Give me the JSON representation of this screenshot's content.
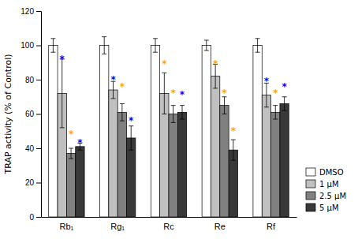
{
  "chart_data": {
    "type": "bar",
    "categories": [
      "Rb₁",
      "Rg₁",
      "Rc",
      "Re",
      "Rf"
    ],
    "series": [
      {
        "name": "DMSO",
        "color": "#ffffff",
        "values": [
          100,
          100,
          100,
          100,
          100
        ],
        "errors": [
          4,
          5,
          4,
          3,
          4
        ]
      },
      {
        "name": "1 μM",
        "color": "#c0c0c0",
        "values": [
          72,
          74,
          72,
          82,
          71
        ],
        "errors": [
          20,
          5,
          12,
          7,
          7
        ]
      },
      {
        "name": "2.5 μM",
        "color": "#808080",
        "values": [
          37,
          61,
          60,
          65,
          61
        ],
        "errors": [
          3,
          5,
          5,
          5,
          4
        ]
      },
      {
        "name": "5 μM",
        "color": "#383838",
        "values": [
          41,
          46,
          61,
          39,
          66
        ],
        "errors": [
          2,
          7,
          4,
          6,
          4
        ]
      }
    ],
    "y_label": "TRAP activity (% of Control)",
    "ylim": [
      0,
      120
    ],
    "yticks": [
      0,
      20,
      40,
      60,
      80,
      100,
      120
    ],
    "grid": false,
    "legend": "lower right",
    "annotations": [
      {
        "text": "*",
        "x": "Rb₁",
        "series": "1 μM",
        "y": 93,
        "color": "blue"
      },
      {
        "text": "*",
        "x": "Rb₁",
        "series": "2.5 μM",
        "y": 49,
        "color": "orange"
      },
      {
        "text": "*",
        "x": "Rb₁",
        "series": "5 μM",
        "y": 44,
        "color": "blue"
      },
      {
        "text": "*",
        "x": "Rg₁",
        "series": "1 μM",
        "y": 81,
        "color": "blue"
      },
      {
        "text": "*",
        "x": "Rg₁",
        "series": "2.5 μM",
        "y": 77,
        "color": "orange"
      },
      {
        "text": "*",
        "x": "Rg₁",
        "series": "5 μM",
        "y": 57,
        "color": "blue"
      },
      {
        "text": "*",
        "x": "Rc",
        "series": "1 μM",
        "y": 90,
        "color": "orange"
      },
      {
        "text": "*",
        "x": "Rc",
        "series": "2.5 μM",
        "y": 73,
        "color": "orange"
      },
      {
        "text": "*",
        "x": "Rc",
        "series": "5 μM",
        "y": 72,
        "color": "blue"
      },
      {
        "text": "*",
        "x": "Re",
        "series": "1 μM",
        "y": 90,
        "color": "orange"
      },
      {
        "text": "*",
        "x": "Re",
        "series": "2.5 μM",
        "y": 73,
        "color": "orange"
      },
      {
        "text": "*",
        "x": "Re",
        "series": "5 μM",
        "y": 51,
        "color": "orange"
      },
      {
        "text": "*",
        "x": "Rf",
        "series": "1 μM",
        "y": 80,
        "color": "blue"
      },
      {
        "text": "*",
        "x": "Rf",
        "series": "2.5 μM",
        "y": 73,
        "color": "orange"
      },
      {
        "text": "*",
        "x": "Rf",
        "series": "5 μM",
        "y": 77,
        "color": "blue"
      }
    ]
  }
}
